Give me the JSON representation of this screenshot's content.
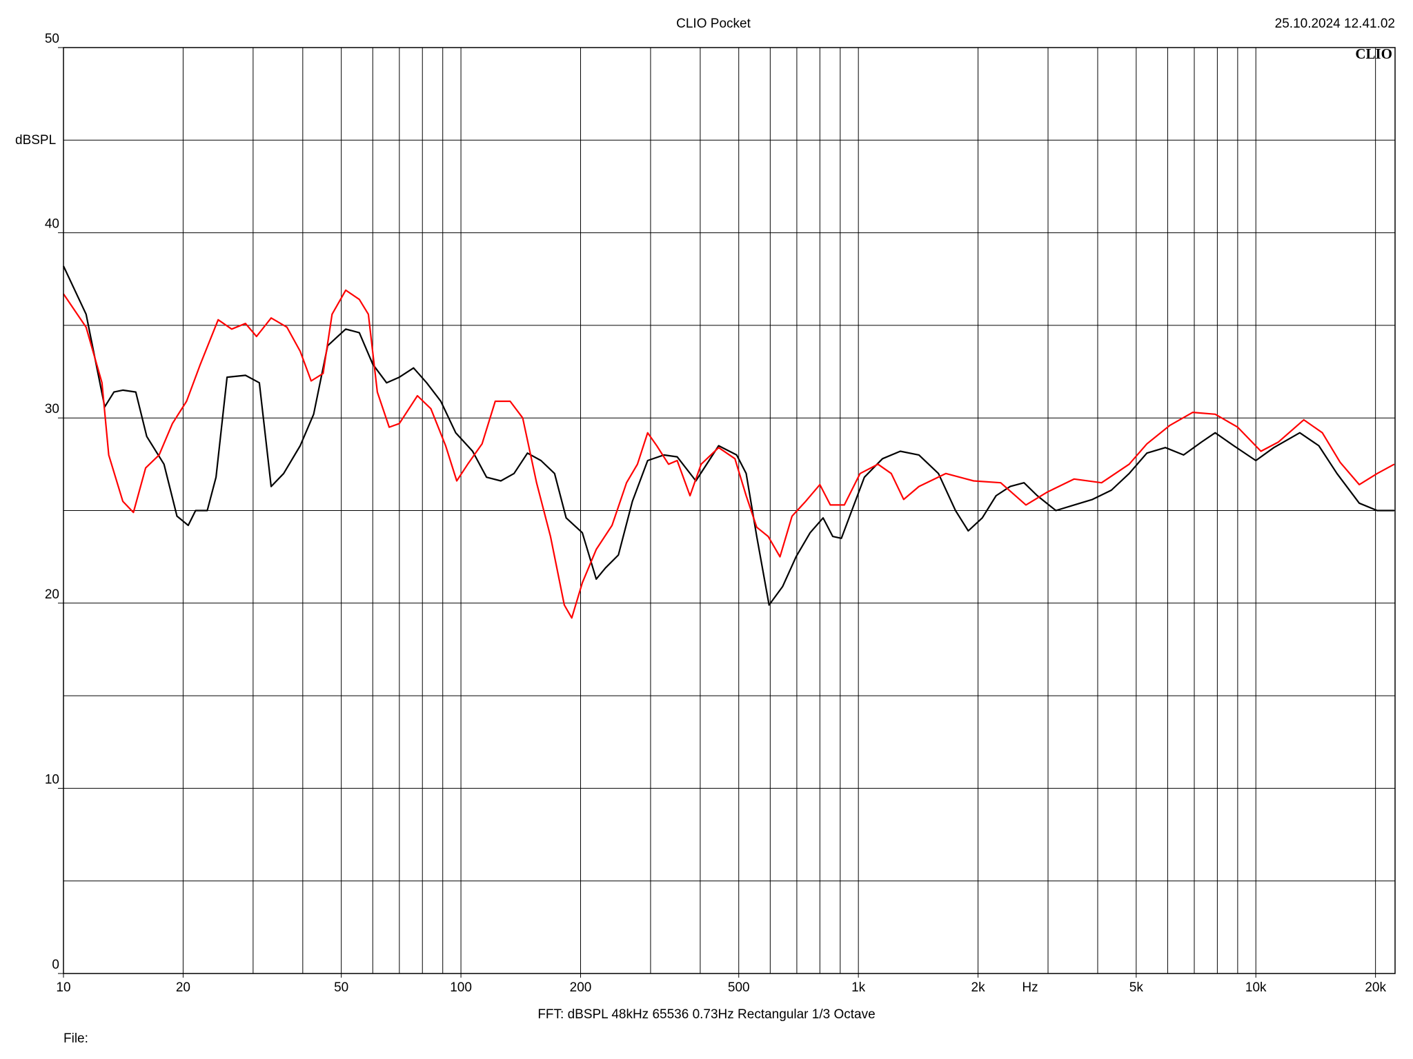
{
  "chart_data": {
    "type": "line",
    "title": "CLIO Pocket",
    "timestamp": "25.10.2024 12.41.02",
    "logo": "CLIO",
    "y_label": "dBSPL",
    "x_label": "Hz",
    "footer": "FFT:  dBSPL  48kHz  65536  0.73Hz  Rectangular  1/3 Octave",
    "file_label": "File:",
    "xscale": "log",
    "xlim": [
      10,
      22400
    ],
    "ylim": [
      0,
      50
    ],
    "xticks": [
      10,
      20,
      50,
      100,
      200,
      500,
      {
        "value": 1000,
        "label": "1k"
      },
      {
        "value": 2000,
        "label": "2k"
      },
      {
        "value": 5000,
        "label": "5k"
      },
      {
        "value": 10000,
        "label": "10k"
      },
      {
        "value": 20000,
        "label": "20k"
      }
    ],
    "yticks": [
      0,
      10,
      20,
      30,
      40,
      50
    ],
    "xgrid": [
      20,
      30,
      40,
      50,
      60,
      70,
      80,
      90,
      100,
      200,
      300,
      400,
      500,
      600,
      700,
      800,
      900,
      1000,
      2000,
      3000,
      4000,
      5000,
      6000,
      7000,
      8000,
      9000,
      10000,
      20000
    ],
    "ygrid": [
      5,
      10,
      15,
      20,
      25,
      30,
      35,
      40,
      45
    ],
    "grid": true,
    "series": [
      {
        "color": "#000000",
        "x": [
          10,
          11.4,
          12.7,
          13.4,
          14.1,
          15.2,
          16.2,
          17.9,
          19.3,
          20.6,
          21.5,
          23,
          24.2,
          25.8,
          28.7,
          31.1,
          33.3,
          35.8,
          39.4,
          42.6,
          46.2,
          51.3,
          55.5,
          60,
          65,
          70,
          76,
          82,
          89,
          97,
          107,
          116,
          126,
          136,
          147,
          159,
          172,
          184,
          202,
          219,
          231,
          249,
          270,
          295,
          324,
          350,
          390,
          445,
          494,
          522,
          555,
          596,
          645,
          697,
          756,
          815,
          862,
          906,
          955,
          1035,
          1150,
          1275,
          1420,
          1590,
          1755,
          1890,
          2050,
          2220,
          2410,
          2610,
          2820,
          3140,
          3490,
          3880,
          4330,
          4800,
          5320,
          5920,
          6580,
          7300,
          7900,
          8800,
          10000,
          11100,
          12900,
          14400,
          16000,
          18200,
          20200,
          22300
        ],
        "values": [
          38.2,
          35.6,
          30.6,
          31.4,
          31.5,
          31.4,
          29.0,
          27.5,
          24.7,
          24.2,
          25.0,
          25.0,
          26.8,
          32.2,
          32.3,
          31.9,
          26.3,
          27.0,
          28.5,
          30.2,
          33.9,
          34.8,
          34.6,
          32.9,
          31.9,
          32.2,
          32.7,
          31.9,
          30.9,
          29.2,
          28.2,
          26.8,
          26.6,
          27.0,
          28.1,
          27.7,
          27.0,
          24.6,
          23.8,
          21.3,
          21.9,
          22.6,
          25.5,
          27.7,
          28.0,
          27.9,
          26.6,
          28.5,
          28.0,
          27.0,
          23.6,
          19.9,
          20.9,
          22.5,
          23.8,
          24.6,
          23.6,
          23.5,
          24.8,
          26.8,
          27.8,
          28.2,
          28.0,
          27.0,
          25.0,
          23.9,
          24.6,
          25.8,
          26.3,
          26.5,
          25.8,
          25.0,
          25.3,
          25.6,
          26.1,
          27.0,
          28.1,
          28.4,
          28.0,
          28.7,
          29.2,
          28.5,
          27.7,
          28.4,
          29.2,
          28.5,
          27.0,
          25.4,
          25.0,
          25.0
        ]
      },
      {
        "color": "#ff0000",
        "x": [
          10,
          11.4,
          12.5,
          13,
          14.1,
          15,
          16.1,
          17.4,
          18.8,
          20.4,
          22.1,
          24.5,
          26.5,
          28.7,
          30.6,
          33.3,
          36.5,
          39.4,
          42,
          45,
          47.4,
          51.3,
          55.5,
          58.5,
          61.6,
          66,
          70,
          77.7,
          84,
          91.5,
          97.6,
          104,
          113,
          122,
          133,
          143,
          155,
          168,
          182,
          190,
          202,
          219,
          240,
          261,
          278,
          295,
          311,
          333,
          350,
          377,
          402,
          445,
          489,
          522,
          555,
          593,
          635,
          681,
          737,
          800,
          850,
          922,
          1010,
          1120,
          1210,
          1300,
          1420,
          1660,
          1950,
          2280,
          2640,
          2990,
          3490,
          4090,
          4800,
          5320,
          6080,
          6940,
          7900,
          9000,
          10300,
          11400,
          13200,
          14700,
          16300,
          18200,
          20200,
          22300
        ],
        "values": [
          36.7,
          34.9,
          31.9,
          28.0,
          25.5,
          24.9,
          27.3,
          28.0,
          29.7,
          30.9,
          32.9,
          35.3,
          34.8,
          35.1,
          34.4,
          35.4,
          34.9,
          33.6,
          32.0,
          32.4,
          35.6,
          36.9,
          36.4,
          35.6,
          31.4,
          29.5,
          29.7,
          31.2,
          30.5,
          28.5,
          26.6,
          27.5,
          28.6,
          30.9,
          30.9,
          30.0,
          26.5,
          23.6,
          19.9,
          19.2,
          21.1,
          22.9,
          24.2,
          26.5,
          27.5,
          29.2,
          28.5,
          27.5,
          27.7,
          25.8,
          27.5,
          28.4,
          27.8,
          25.8,
          24.1,
          23.6,
          22.5,
          24.7,
          25.5,
          26.4,
          25.3,
          25.3,
          27.0,
          27.5,
          27.0,
          25.6,
          26.3,
          27.0,
          26.6,
          26.5,
          25.3,
          26.0,
          26.7,
          26.5,
          27.5,
          28.6,
          29.6,
          30.3,
          30.2,
          29.5,
          28.2,
          28.7,
          29.9,
          29.2,
          27.6,
          26.4,
          27.0,
          27.5
        ]
      }
    ]
  }
}
